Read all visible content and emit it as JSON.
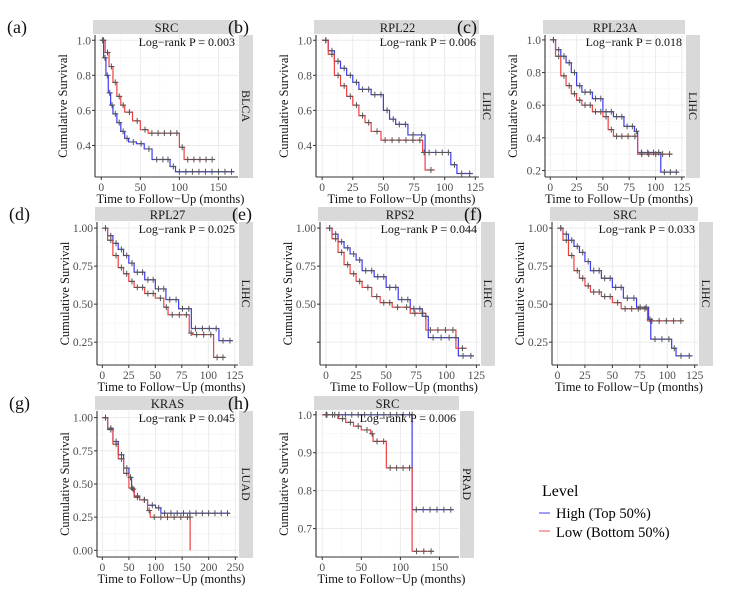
{
  "chart_data": [
    {
      "type": "line",
      "subtype": "kaplan-meier",
      "panel_label": "(a)",
      "gene": "SRC",
      "cancer": "BLCA",
      "annotation": "Log−rank P = 0.003",
      "xlabel": "Time to Follow−Up (months)",
      "ylabel": "Cumulative Survival",
      "xlim": [
        -8,
        175
      ],
      "ylim": [
        0.22,
        1.03
      ],
      "xticks": [
        0,
        50,
        100,
        150
      ],
      "yticks": [
        0.4,
        0.6,
        0.8,
        1.0
      ],
      "ytick_labels": [
        "0.4",
        "0.6",
        "0.8",
        "1.0"
      ],
      "grid": true,
      "series": [
        {
          "name": "High (Top 50%)",
          "color": "#3b3bf5",
          "x": [
            0,
            3,
            6,
            9,
            12,
            15,
            20,
            25,
            30,
            35,
            45,
            55,
            65,
            75,
            88,
            95,
            170
          ],
          "y": [
            1.0,
            0.9,
            0.8,
            0.7,
            0.63,
            0.58,
            0.53,
            0.48,
            0.44,
            0.42,
            0.41,
            0.38,
            0.32,
            0.32,
            0.28,
            0.25,
            0.25
          ]
        },
        {
          "name": "Low (Bottom 50%)",
          "color": "#f04040",
          "x": [
            0,
            5,
            10,
            15,
            20,
            25,
            30,
            40,
            50,
            60,
            100,
            106,
            145
          ],
          "y": [
            1.0,
            0.93,
            0.85,
            0.76,
            0.68,
            0.63,
            0.59,
            0.54,
            0.49,
            0.47,
            0.39,
            0.32,
            0.32
          ]
        }
      ]
    },
    {
      "type": "line",
      "subtype": "kaplan-meier",
      "panel_label": "(b)",
      "gene": "RPL22",
      "cancer": "LIHC",
      "annotation": "Log−rank P = 0.006",
      "xlabel": "Time to Follow−Up (months)",
      "ylabel": "Cumulative Survival",
      "xlim": [
        -5,
        128
      ],
      "ylim": [
        0.22,
        1.03
      ],
      "xticks": [
        0,
        25,
        50,
        75,
        100,
        125
      ],
      "yticks": [
        0.4,
        0.6,
        0.8,
        1.0
      ],
      "ytick_labels": [
        "0.4",
        "0.6",
        "0.8",
        "1.0"
      ],
      "grid": true,
      "series": [
        {
          "name": "High (Top 50%)",
          "color": "#3b3bf5",
          "x": [
            0,
            5,
            10,
            15,
            20,
            25,
            30,
            40,
            50,
            55,
            60,
            70,
            84,
            95,
            105,
            110,
            123
          ],
          "y": [
            1.0,
            0.94,
            0.88,
            0.84,
            0.8,
            0.76,
            0.72,
            0.69,
            0.6,
            0.55,
            0.52,
            0.46,
            0.36,
            0.36,
            0.29,
            0.24,
            0.24
          ]
        },
        {
          "name": "Low (Bottom 50%)",
          "color": "#f04040",
          "x": [
            0,
            5,
            10,
            15,
            20,
            25,
            30,
            35,
            40,
            48,
            82,
            84,
            92
          ],
          "y": [
            1.0,
            0.92,
            0.8,
            0.74,
            0.68,
            0.63,
            0.57,
            0.53,
            0.48,
            0.43,
            0.36,
            0.26,
            0.26
          ]
        }
      ]
    },
    {
      "type": "line",
      "subtype": "kaplan-meier",
      "panel_label": "(c)",
      "gene": "RPL23A",
      "cancer": "LIHC",
      "annotation": "Log−rank P = 0.018",
      "xlabel": "Time to Follow−Up (months)",
      "ylabel": "Cumulative Survival",
      "xlim": [
        -5,
        128
      ],
      "ylim": [
        0.16,
        1.03
      ],
      "xticks": [
        0,
        25,
        50,
        75,
        100,
        125
      ],
      "yticks": [
        0.2,
        0.4,
        0.6,
        0.8,
        1.0
      ],
      "ytick_labels": [
        "0.2",
        "0.4",
        "0.6",
        "0.8",
        "1.0"
      ],
      "grid": true,
      "series": [
        {
          "name": "High (Top 50%)",
          "color": "#3b3bf5",
          "x": [
            0,
            5,
            10,
            15,
            20,
            25,
            30,
            40,
            50,
            60,
            70,
            80,
            83,
            95,
            105,
            122
          ],
          "y": [
            1.0,
            0.94,
            0.9,
            0.86,
            0.8,
            0.72,
            0.68,
            0.64,
            0.56,
            0.53,
            0.47,
            0.44,
            0.31,
            0.31,
            0.19,
            0.19
          ]
        },
        {
          "name": "Low (Bottom 50%)",
          "color": "#f04040",
          "x": [
            0,
            5,
            10,
            15,
            20,
            25,
            30,
            40,
            50,
            55,
            60,
            70,
            83,
            116
          ],
          "y": [
            1.0,
            0.9,
            0.78,
            0.72,
            0.67,
            0.63,
            0.6,
            0.56,
            0.53,
            0.45,
            0.41,
            0.41,
            0.3,
            0.3
          ]
        }
      ]
    },
    {
      "type": "line",
      "subtype": "kaplan-meier",
      "panel_label": "(d)",
      "gene": "RPL27",
      "cancer": "LIHC",
      "annotation": "Log−rank P = 0.025",
      "xlabel": "Time to Follow−Up (months)",
      "ylabel": "Cumulative Survival",
      "xlim": [
        -5,
        128
      ],
      "ylim": [
        0.1,
        1.04
      ],
      "xticks": [
        0,
        25,
        50,
        75,
        100,
        125
      ],
      "yticks": [
        0.25,
        0.5,
        0.75,
        1.0
      ],
      "ytick_labels": [
        "0.25",
        "0.50",
        "0.75",
        "1.00"
      ],
      "grid": true,
      "series": [
        {
          "name": "High (Top 50%)",
          "color": "#3b3bf5",
          "x": [
            0,
            5,
            10,
            15,
            20,
            25,
            30,
            40,
            50,
            60,
            72,
            84,
            110,
            123
          ],
          "y": [
            1.0,
            0.95,
            0.9,
            0.86,
            0.82,
            0.77,
            0.71,
            0.66,
            0.6,
            0.53,
            0.47,
            0.34,
            0.26,
            0.26
          ]
        },
        {
          "name": "Low (Bottom 50%)",
          "color": "#f04040",
          "x": [
            0,
            5,
            10,
            15,
            20,
            25,
            30,
            40,
            50,
            58,
            62,
            82,
            85,
            105,
            116
          ],
          "y": [
            1.0,
            0.92,
            0.82,
            0.74,
            0.7,
            0.65,
            0.61,
            0.57,
            0.54,
            0.48,
            0.43,
            0.31,
            0.3,
            0.15,
            0.15
          ]
        }
      ]
    },
    {
      "type": "line",
      "subtype": "kaplan-meier",
      "panel_label": "(e)",
      "gene": "RPS2",
      "cancer": "LIHC",
      "annotation": "Log−rank P = 0.044",
      "xlabel": "Time to Follow−Up (months)",
      "ylabel": "Cumulative Survival",
      "xlim": [
        -5,
        128
      ],
      "ylim": [
        0.1,
        1.04
      ],
      "xticks": [
        0,
        25,
        50,
        75,
        100,
        125
      ],
      "yticks": [
        0.25,
        0.5,
        0.75,
        1.0
      ],
      "ytick_labels": [
        "",
        "0.50",
        "0.75",
        "1.00"
      ],
      "grid": true,
      "series": [
        {
          "name": "High (Top 50%)",
          "color": "#3b3bf5",
          "x": [
            0,
            5,
            10,
            15,
            20,
            25,
            30,
            40,
            50,
            60,
            70,
            80,
            85,
            105,
            110,
            123
          ],
          "y": [
            1.0,
            0.96,
            0.91,
            0.87,
            0.83,
            0.79,
            0.72,
            0.68,
            0.61,
            0.53,
            0.47,
            0.42,
            0.28,
            0.28,
            0.16,
            0.16
          ]
        },
        {
          "name": "Low (Bottom 50%)",
          "color": "#f04040",
          "x": [
            0,
            5,
            10,
            15,
            20,
            25,
            30,
            38,
            45,
            55,
            70,
            83,
            108,
            117
          ],
          "y": [
            1.0,
            0.93,
            0.84,
            0.76,
            0.7,
            0.65,
            0.61,
            0.55,
            0.51,
            0.48,
            0.44,
            0.33,
            0.21,
            0.21
          ]
        }
      ]
    },
    {
      "type": "line",
      "subtype": "kaplan-meier",
      "panel_label": "(f)",
      "gene": "SRC",
      "cancer": "LIHC",
      "annotation": "Log−rank P = 0.033",
      "xlabel": "Time to Follow−Up (months)",
      "ylabel": "Cumulative Survival",
      "xlim": [
        -5,
        128
      ],
      "ylim": [
        0.1,
        1.04
      ],
      "xticks": [
        0,
        25,
        50,
        75,
        100,
        125
      ],
      "yticks": [
        0.25,
        0.5,
        0.75,
        1.0
      ],
      "ytick_labels": [
        "0.25",
        "0.50",
        "0.75",
        "1.00"
      ],
      "grid": true,
      "series": [
        {
          "name": "High (Top 50%)",
          "color": "#3b3bf5",
          "x": [
            0,
            5,
            10,
            15,
            20,
            25,
            30,
            40,
            50,
            60,
            72,
            83,
            85,
            104,
            108,
            123
          ],
          "y": [
            1.0,
            0.96,
            0.92,
            0.88,
            0.84,
            0.78,
            0.72,
            0.67,
            0.61,
            0.54,
            0.48,
            0.4,
            0.27,
            0.21,
            0.16,
            0.16
          ]
        },
        {
          "name": "Low (Bottom 50%)",
          "color": "#f04040",
          "x": [
            0,
            5,
            10,
            15,
            20,
            25,
            30,
            40,
            50,
            58,
            82,
            115
          ],
          "y": [
            1.0,
            0.92,
            0.82,
            0.72,
            0.67,
            0.62,
            0.58,
            0.55,
            0.51,
            0.47,
            0.39,
            0.39
          ]
        }
      ]
    },
    {
      "type": "line",
      "subtype": "kaplan-meier",
      "panel_label": "(g)",
      "gene": "KRAS",
      "cancer": "LUAD",
      "annotation": "Log−rank P = 0.045",
      "xlabel": "Time to Follow−Up (months)",
      "ylabel": "Cumulative Survival",
      "xlim": [
        -10,
        255
      ],
      "ylim": [
        -0.05,
        1.05
      ],
      "xticks": [
        0,
        50,
        100,
        150,
        200,
        250
      ],
      "yticks": [
        0.0,
        0.25,
        0.5,
        0.75,
        1.0
      ],
      "ytick_labels": [
        "0.00",
        "0.25",
        "0.50",
        "0.75",
        "1.00"
      ],
      "grid": true,
      "series": [
        {
          "name": "High (Top 50%)",
          "color": "#3b3bf5",
          "x": [
            0,
            10,
            20,
            30,
            40,
            50,
            55,
            60,
            70,
            85,
            100,
            110,
            240
          ],
          "y": [
            1.0,
            0.92,
            0.82,
            0.72,
            0.62,
            0.55,
            0.46,
            0.41,
            0.38,
            0.34,
            0.32,
            0.28,
            0.28
          ]
        },
        {
          "name": "Low (Bottom 50%)",
          "color": "#f04040",
          "x": [
            0,
            10,
            20,
            30,
            40,
            50,
            60,
            70,
            85,
            90,
            165,
            165
          ],
          "y": [
            1.0,
            0.91,
            0.8,
            0.69,
            0.58,
            0.47,
            0.4,
            0.38,
            0.3,
            0.25,
            0.25,
            0.0
          ]
        }
      ]
    },
    {
      "type": "line",
      "subtype": "kaplan-meier",
      "panel_label": "(h)",
      "gene": "SRC",
      "cancer": "PRAD",
      "annotation": "Log−rank P = 0.006",
      "xlabel": "Time to Follow−Up (months)",
      "ylabel": "Cumulative Survival",
      "xlim": [
        -8,
        175
      ],
      "ylim": [
        0.625,
        1.01
      ],
      "xticks": [
        0,
        50,
        100,
        150
      ],
      "yticks": [
        0.7,
        0.8,
        0.9,
        1.0
      ],
      "ytick_labels": [
        "0.7",
        "0.8",
        "0.9",
        "1.0"
      ],
      "grid": true,
      "series": [
        {
          "name": "High (Top 50%)",
          "color": "#3b3bf5",
          "x": [
            0,
            115,
            115,
            168
          ],
          "y": [
            1.0,
            1.0,
            0.75,
            0.75
          ]
        },
        {
          "name": "Low (Bottom 50%)",
          "color": "#f04040",
          "x": [
            0,
            20,
            30,
            40,
            50,
            62,
            65,
            82,
            115,
            143
          ],
          "y": [
            1.0,
            0.99,
            0.98,
            0.97,
            0.96,
            0.95,
            0.93,
            0.86,
            0.64,
            0.64
          ]
        }
      ]
    }
  ],
  "legend": {
    "title": "Level",
    "items": [
      {
        "label": "High (Top 50%)",
        "color": "#7f7ff5"
      },
      {
        "label": "Low (Bottom 50%)",
        "color": "#f58a8a"
      }
    ],
    "placement": "bottom-right"
  },
  "colors": {
    "strip_bg": "#d9d9d9",
    "grid": "#ebebeb",
    "censor_mark": "#555555",
    "axis_text": "#4d4d4d"
  }
}
